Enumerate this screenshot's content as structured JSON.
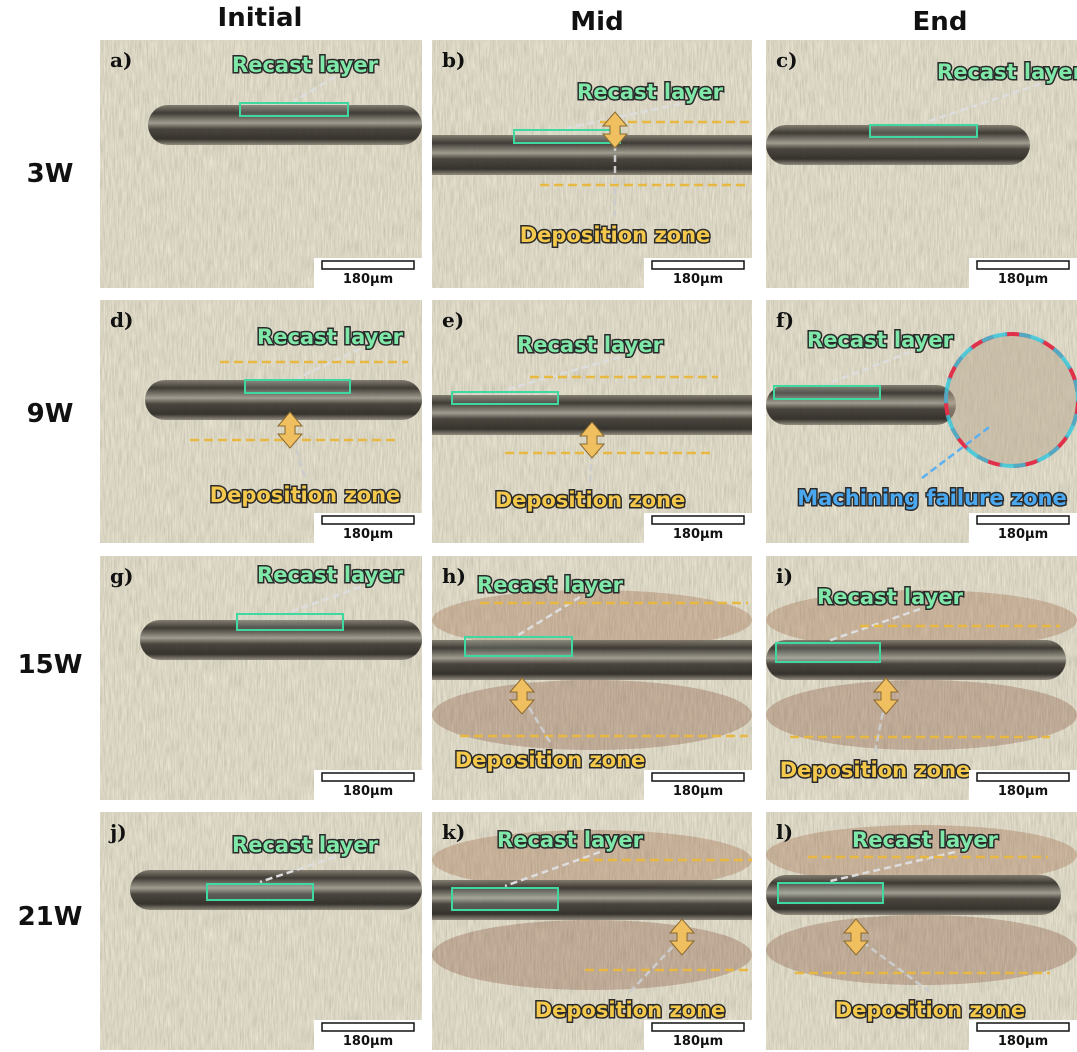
{
  "column_headers": [
    "Initial",
    "Mid",
    "End"
  ],
  "rows": [
    {
      "label": "3W",
      "panels": [
        {
          "id": "a)",
          "recast": "Recast layer",
          "scale": "180µm"
        },
        {
          "id": "b)",
          "recast": "Recast layer",
          "deposition": "Deposition zone",
          "scale": "180µm"
        },
        {
          "id": "c)",
          "recast": "Recast layer",
          "scale": "180µm"
        }
      ]
    },
    {
      "label": "9W",
      "panels": [
        {
          "id": "d)",
          "recast": "Recast layer",
          "deposition": "Deposition zone",
          "scale": "180µm"
        },
        {
          "id": "e)",
          "recast": "Recast layer",
          "deposition": "Deposition zone",
          "scale": "180µm"
        },
        {
          "id": "f)",
          "recast": "Recast layer",
          "failure": "Machining failure zone",
          "scale": "180µm"
        }
      ]
    },
    {
      "label": "15W",
      "panels": [
        {
          "id": "g)",
          "recast": "Recast layer",
          "scale": "180µm"
        },
        {
          "id": "h)",
          "recast": "Recast layer",
          "deposition": "Deposition zone",
          "scale": "180µm"
        },
        {
          "id": "i)",
          "recast": "Recast layer",
          "deposition": "Deposition zone",
          "scale": "180µm"
        }
      ]
    },
    {
      "label": "21W",
      "panels": [
        {
          "id": "j)",
          "recast": "Recast layer",
          "scale": "180µm"
        },
        {
          "id": "k)",
          "recast": "Recast layer",
          "deposition": "Deposition zone",
          "scale": "180µm"
        },
        {
          "id": "l)",
          "recast": "Recast layer",
          "deposition": "Deposition zone",
          "scale": "180µm"
        }
      ]
    }
  ]
}
